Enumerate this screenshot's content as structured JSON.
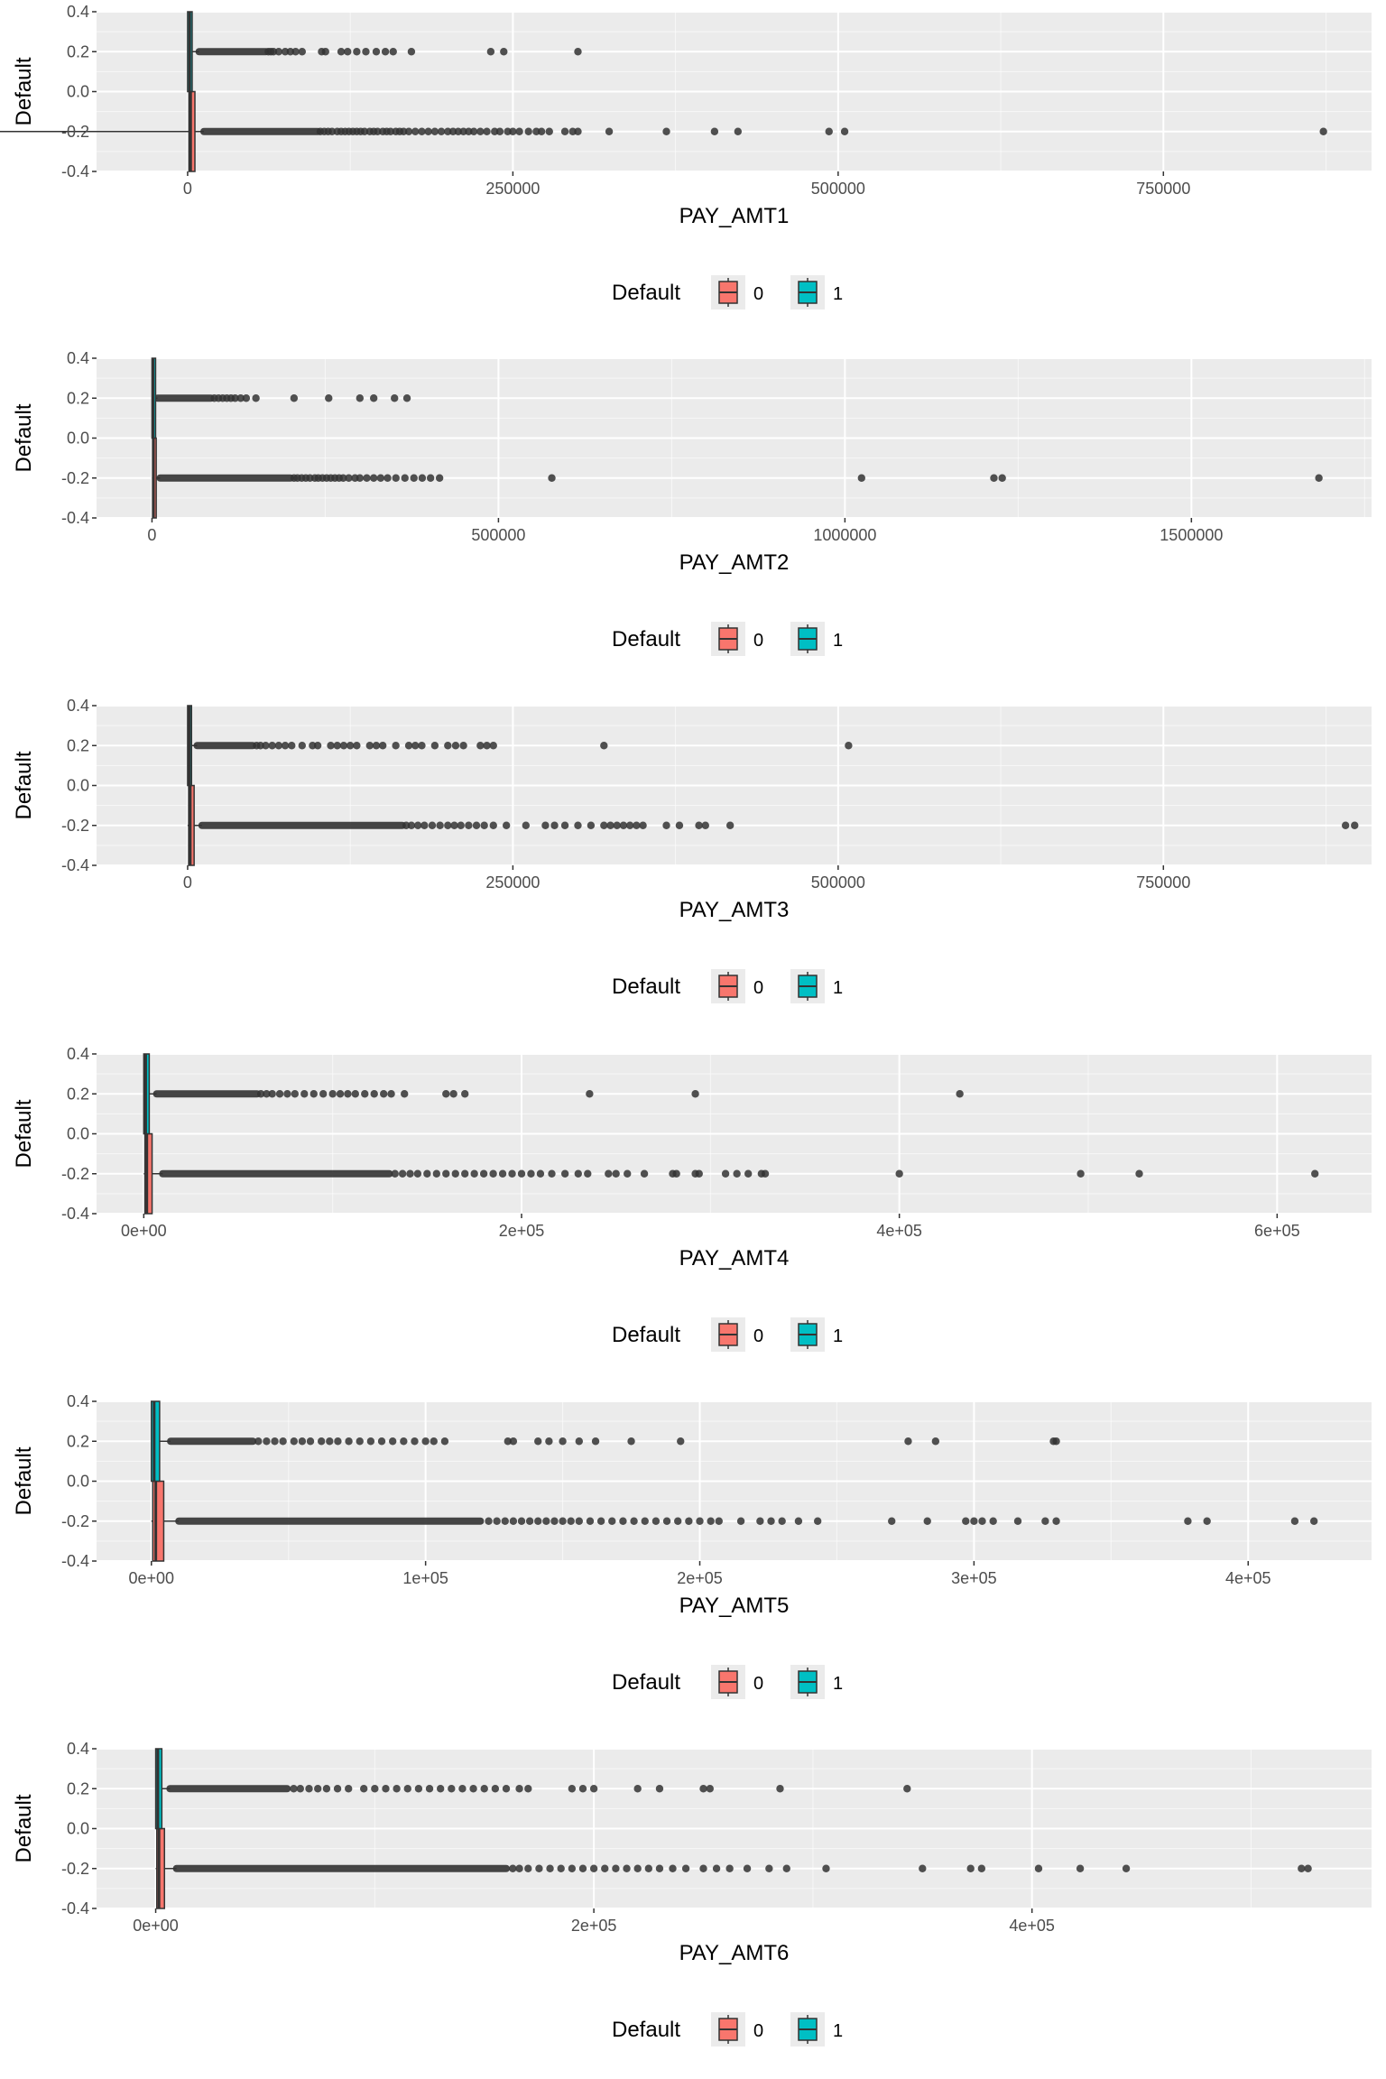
{
  "legend": {
    "title": "Default",
    "entries": [
      {
        "label": "0",
        "color": "#F8766D"
      },
      {
        "label": "1",
        "color": "#00BFC4"
      }
    ]
  },
  "style": {
    "panel_bg": "#EBEBEB",
    "grid_major": "#FFFFFF",
    "point_color": "#333333",
    "box_line": "#333333",
    "axis_text": "#4D4D4D",
    "title_text": "#000000"
  },
  "chart_data": [
    {
      "type": "boxplot",
      "orientation": "horizontal",
      "xlabel": "PAY_AMT1",
      "ylabel": "Default",
      "xlim": [
        -70000,
        910000
      ],
      "ylim": [
        -0.4,
        0.4
      ],
      "x_ticks": [
        0,
        250000,
        500000,
        750000
      ],
      "x_tick_labels": [
        "0",
        "250000",
        "500000",
        "750000"
      ],
      "y_ticks": [
        -0.4,
        -0.2,
        0.0,
        0.2,
        0.4
      ],
      "y_tick_labels": [
        "-0.4",
        "-0.2",
        "0.0",
        "0.2",
        "0.4"
      ],
      "grid": true,
      "legend_position": "bottom",
      "series": [
        {
          "group": "0",
          "y": -0.2,
          "q1": 1000,
          "median": 2300,
          "q3": 5600,
          "whiker_low": 0,
          "whisker_high": 12500,
          "outlier_dense_to": 100000,
          "outliers": [
            102000,
            105000,
            108000,
            111000,
            115000,
            118000,
            121000,
            124000,
            127000,
            130000,
            133000,
            136000,
            140000,
            143000,
            146000,
            150000,
            153000,
            156000,
            160000,
            163000,
            166000,
            170000,
            175000,
            180000,
            185000,
            190000,
            195000,
            200000,
            204000,
            208000,
            212000,
            216000,
            220000,
            225000,
            230000,
            236000,
            240000,
            246000,
            250000,
            255000,
            262000,
            268000,
            272000,
            278000,
            290000,
            296000,
            300000,
            324000,
            368000,
            405000,
            423000,
            493000,
            505000,
            873000
          ]
        },
        {
          "group": "1",
          "y": 0.2,
          "q1": 0,
          "median": 1600,
          "q3": 3500,
          "whisker_low": 0,
          "whisker_high": 8800,
          "outlier_dense_to": 60000,
          "outliers": [
            62000,
            64000,
            66000,
            70000,
            75000,
            79000,
            83000,
            88000,
            103000,
            106000,
            118000,
            123000,
            130000,
            137000,
            145000,
            152000,
            158000,
            172000,
            233000,
            243000,
            300000
          ]
        }
      ]
    },
    {
      "type": "boxplot",
      "orientation": "horizontal",
      "xlabel": "PAY_AMT2",
      "ylabel": "Default",
      "xlim": [
        -80000,
        1760000
      ],
      "ylim": [
        -0.4,
        0.4
      ],
      "x_ticks": [
        0,
        500000,
        1000000,
        1500000
      ],
      "x_tick_labels": [
        "0",
        "500000",
        "1000000",
        "1500000"
      ],
      "y_ticks": [
        -0.4,
        -0.2,
        0.0,
        0.2,
        0.4
      ],
      "y_tick_labels": [
        "-0.4",
        "-0.2",
        "0.0",
        "0.2",
        "0.4"
      ],
      "grid": true,
      "legend_position": "bottom",
      "series": [
        {
          "group": "0",
          "y": -0.2,
          "q1": 900,
          "median": 2100,
          "q3": 5200,
          "whisker_low": 0,
          "whisker_high": 11700,
          "outlier_dense_to": 200000,
          "outliers": [
            205000,
            210000,
            216000,
            222000,
            228000,
            235000,
            240000,
            246000,
            252000,
            258000,
            264000,
            270000,
            276000,
            284000,
            293000,
            300000,
            310000,
            320000,
            330000,
            340000,
            352000,
            365000,
            378000,
            390000,
            402000,
            415000,
            577000,
            1024000,
            1215000,
            1227000,
            1684000
          ]
        },
        {
          "group": "1",
          "y": 0.2,
          "q1": 0,
          "median": 1500,
          "q3": 3300,
          "whisker_low": 0,
          "whisker_high": 8000,
          "outlier_dense_to": 85000,
          "outliers": [
            90000,
            96000,
            102000,
            108000,
            114000,
            120000,
            128000,
            136000,
            150000,
            205000,
            255000,
            300000,
            320000,
            350000,
            368000
          ]
        }
      ]
    },
    {
      "type": "boxplot",
      "orientation": "horizontal",
      "xlabel": "PAY_AMT3",
      "ylabel": "Default",
      "xlim": [
        -70000,
        910000
      ],
      "ylim": [
        -0.4,
        0.4
      ],
      "x_ticks": [
        0,
        250000,
        500000,
        750000
      ],
      "x_tick_labels": [
        "0",
        "250000",
        "500000",
        "750000"
      ],
      "y_ticks": [
        -0.4,
        -0.2,
        0.0,
        0.2,
        0.4
      ],
      "y_tick_labels": [
        "-0.4",
        "-0.2",
        "0.0",
        "0.2",
        "0.4"
      ],
      "grid": true,
      "legend_position": "bottom",
      "series": [
        {
          "group": "0",
          "y": -0.2,
          "q1": 800,
          "median": 2000,
          "q3": 5000,
          "whisker_low": 0,
          "whisker_high": 11000,
          "outlier_dense_to": 165000,
          "outliers": [
            168000,
            172000,
            177000,
            182000,
            188000,
            194000,
            200000,
            205000,
            210000,
            216000,
            222000,
            228000,
            235000,
            245000,
            260000,
            275000,
            282000,
            290000,
            300000,
            310000,
            320000,
            325000,
            330000,
            335000,
            340000,
            345000,
            350000,
            368000,
            378000,
            393000,
            398000,
            417000,
            890000,
            897000
          ]
        },
        {
          "group": "1",
          "y": 0.2,
          "q1": 0,
          "median": 1300,
          "q3": 3000,
          "whisker_low": 0,
          "whisker_high": 7300,
          "outlier_dense_to": 50000,
          "outliers": [
            53000,
            56000,
            60000,
            65000,
            70000,
            75000,
            80000,
            88000,
            96000,
            100000,
            110000,
            115000,
            120000,
            125000,
            130000,
            140000,
            145000,
            150000,
            160000,
            170000,
            175000,
            180000,
            190000,
            200000,
            206000,
            212000,
            225000,
            230000,
            235000,
            320000,
            508000
          ]
        }
      ]
    },
    {
      "type": "boxplot",
      "orientation": "horizontal",
      "xlabel": "PAY_AMT4",
      "ylabel": "Default",
      "xlim": [
        -25000,
        650000
      ],
      "ylim": [
        -0.4,
        0.4
      ],
      "x_ticks": [
        0,
        200000,
        400000,
        600000
      ],
      "x_tick_labels": [
        "0e+00",
        "2e+05",
        "4e+05",
        "6e+05"
      ],
      "y_ticks": [
        -0.4,
        -0.2,
        0.0,
        0.2,
        0.4
      ],
      "y_tick_labels": [
        "-0.4",
        "-0.2",
        "0.0",
        "0.2",
        "0.4"
      ],
      "grid": true,
      "legend_position": "bottom",
      "series": [
        {
          "group": "0",
          "y": -0.2,
          "q1": 600,
          "median": 1600,
          "q3": 4400,
          "whisker_low": 0,
          "whisker_high": 10000,
          "outlier_dense_to": 130000,
          "outliers": [
            133000,
            137000,
            141000,
            145000,
            150000,
            155000,
            160000,
            165000,
            170000,
            175000,
            180000,
            185000,
            190000,
            195000,
            200000,
            205000,
            210000,
            216000,
            223000,
            230000,
            235000,
            246000,
            250000,
            256000,
            265000,
            280000,
            282000,
            292000,
            294000,
            308000,
            314000,
            320000,
            327000,
            329000,
            400000,
            496000,
            527000,
            620000
          ]
        },
        {
          "group": "1",
          "y": 0.2,
          "q1": 0,
          "median": 1000,
          "q3": 2900,
          "whisker_low": 0,
          "whisker_high": 6800,
          "outlier_dense_to": 60000,
          "outliers": [
            62000,
            65000,
            68000,
            72000,
            76000,
            80000,
            85000,
            90000,
            95000,
            100000,
            104000,
            108000,
            112000,
            117000,
            122000,
            127000,
            131000,
            138000,
            160000,
            164000,
            170000,
            236000,
            292000,
            432000
          ]
        }
      ]
    },
    {
      "type": "boxplot",
      "orientation": "horizontal",
      "xlabel": "PAY_AMT5",
      "ylabel": "Default",
      "xlim": [
        -20000,
        445000
      ],
      "ylim": [
        -0.4,
        0.4
      ],
      "x_ticks": [
        0,
        100000,
        200000,
        300000,
        400000
      ],
      "x_tick_labels": [
        "0e+00",
        "1e+05",
        "2e+05",
        "3e+05",
        "4e+05"
      ],
      "y_ticks": [
        -0.4,
        -0.2,
        0.0,
        0.2,
        0.4
      ],
      "y_tick_labels": [
        "-0.4",
        "-0.2",
        "0.0",
        "0.2",
        "0.4"
      ],
      "grid": true,
      "legend_position": "bottom",
      "series": [
        {
          "group": "0",
          "y": -0.2,
          "q1": 500,
          "median": 1600,
          "q3": 4500,
          "whisker_low": 0,
          "whisker_high": 10000,
          "outlier_dense_to": 120000,
          "outliers": [
            123000,
            126000,
            129000,
            132000,
            135000,
            138000,
            141000,
            144000,
            147000,
            150000,
            153000,
            156000,
            160000,
            164000,
            168000,
            172000,
            176000,
            180000,
            184000,
            188000,
            192000,
            196000,
            200000,
            204000,
            207000,
            215000,
            222000,
            226000,
            230000,
            236000,
            243000,
            270000,
            283000,
            297000,
            300000,
            303000,
            307000,
            316000,
            326000,
            330000,
            378000,
            385000,
            417000,
            424000
          ]
        },
        {
          "group": "1",
          "y": 0.2,
          "q1": 0,
          "median": 1000,
          "q3": 3000,
          "whisker_low": 0,
          "whisker_high": 7000,
          "outlier_dense_to": 37000,
          "outliers": [
            39000,
            42000,
            45000,
            48000,
            52000,
            55000,
            58000,
            62000,
            65000,
            68000,
            72000,
            76000,
            80000,
            84000,
            88000,
            92000,
            96000,
            100000,
            103000,
            107000,
            130000,
            132000,
            141000,
            145000,
            150000,
            156000,
            162000,
            175000,
            193000,
            276000,
            286000,
            329000,
            330000
          ]
        }
      ]
    },
    {
      "type": "boxplot",
      "orientation": "horizontal",
      "xlabel": "PAY_AMT6",
      "ylabel": "Default",
      "xlim": [
        -27000,
        555000
      ],
      "ylim": [
        -0.4,
        0.4
      ],
      "x_ticks": [
        0,
        200000,
        400000
      ],
      "x_tick_labels": [
        "0e+00",
        "2e+05",
        "4e+05"
      ],
      "y_ticks": [
        -0.4,
        -0.2,
        0.0,
        0.2,
        0.4
      ],
      "y_tick_labels": [
        "-0.4",
        "-0.2",
        "0.0",
        "0.2",
        "0.4"
      ],
      "grid": true,
      "legend_position": "bottom",
      "series": [
        {
          "group": "0",
          "y": -0.2,
          "q1": 500,
          "median": 1500,
          "q3": 4000,
          "whisker_low": 0,
          "whisker_high": 9500,
          "outlier_dense_to": 160000,
          "outliers": [
            163000,
            166000,
            170000,
            175000,
            180000,
            185000,
            190000,
            195000,
            200000,
            205000,
            210000,
            215000,
            220000,
            225000,
            230000,
            236000,
            242000,
            250000,
            256000,
            262000,
            270000,
            280000,
            288000,
            306000,
            350000,
            372000,
            377000,
            403000,
            422000,
            443000,
            523000,
            526000
          ]
        },
        {
          "group": "1",
          "y": 0.2,
          "q1": 0,
          "median": 1000,
          "q3": 2800,
          "whisker_low": 0,
          "whisker_high": 6500,
          "outlier_dense_to": 60000,
          "outliers": [
            63000,
            66000,
            70000,
            74000,
            78000,
            83000,
            88000,
            95000,
            100000,
            105000,
            110000,
            115000,
            120000,
            125000,
            130000,
            135000,
            140000,
            145000,
            150000,
            155000,
            160000,
            166000,
            170000,
            190000,
            195000,
            200000,
            220000,
            230000,
            250000,
            253000,
            285000,
            343000
          ]
        }
      ]
    }
  ]
}
